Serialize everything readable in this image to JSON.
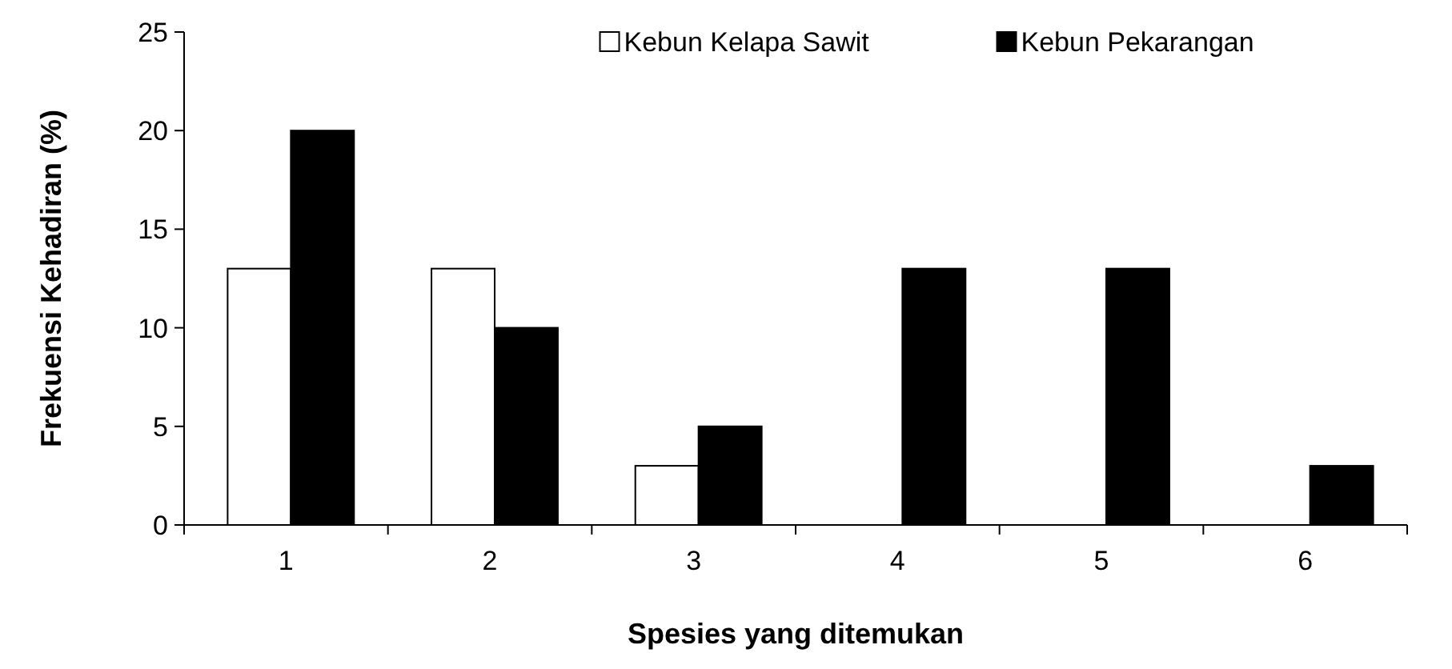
{
  "chart_data": {
    "type": "bar",
    "xlabel": "Spesies yang ditemukan",
    "ylabel": "Frekuensi Kehadiran (%)",
    "categories": [
      "1",
      "2",
      "3",
      "4",
      "5",
      "6"
    ],
    "series": [
      {
        "name": "Kebun Kelapa Sawit",
        "color": "#ffffff",
        "values": [
          13,
          13,
          3,
          0,
          0,
          0
        ]
      },
      {
        "name": "Kebun Pekarangan",
        "color": "#000000",
        "values": [
          20,
          10,
          5,
          13,
          13,
          3
        ]
      }
    ],
    "ylim": [
      0,
      25
    ],
    "yticks": [
      0,
      5,
      10,
      15,
      20,
      25
    ],
    "legend": "top",
    "grid": false
  }
}
